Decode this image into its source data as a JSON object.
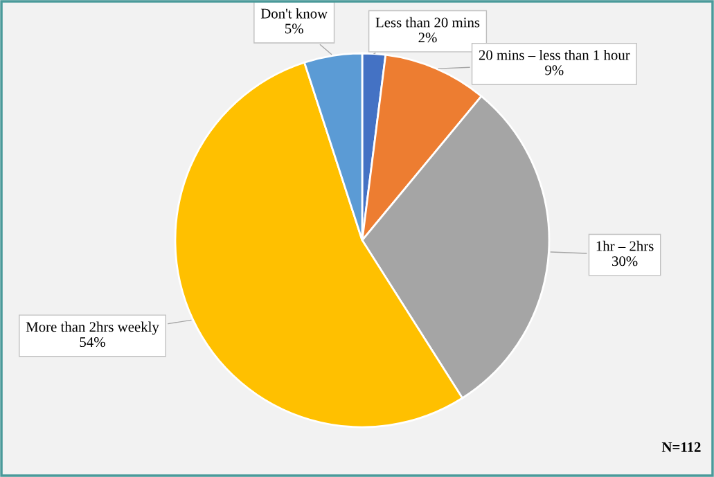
{
  "chart_data": {
    "type": "pie",
    "categories": [
      "Less than 20 mins",
      "20 mins – less than 1 hour",
      "1hr – 2hrs",
      "More than 2hrs weekly",
      "Don't know"
    ],
    "values": [
      2,
      9,
      30,
      54,
      5
    ],
    "colors": [
      "#4472c4",
      "#ed7d31",
      "#a5a5a5",
      "#ffc000",
      "#5b9bd5"
    ],
    "value_labels": [
      "2%",
      "9%",
      "30%",
      "54%",
      "5%"
    ],
    "annotations": [
      "N=112"
    ]
  }
}
